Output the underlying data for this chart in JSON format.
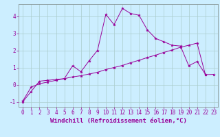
{
  "xlabel": "Windchill (Refroidissement éolien,°C)",
  "background_color": "#cceeff",
  "line_color": "#990099",
  "xlim": [
    -0.5,
    23.5
  ],
  "ylim": [
    -1.3,
    4.7
  ],
  "yticks": [
    -1,
    0,
    1,
    2,
    3,
    4
  ],
  "xticks": [
    0,
    1,
    2,
    3,
    4,
    5,
    6,
    7,
    8,
    9,
    10,
    11,
    12,
    13,
    14,
    15,
    16,
    17,
    18,
    19,
    20,
    21,
    22,
    23
  ],
  "line1_x": [
    0,
    1,
    2,
    3,
    4,
    5,
    6,
    7,
    8,
    9,
    10,
    11,
    12,
    13,
    14,
    15,
    16,
    17,
    18,
    19,
    20,
    21,
    22
  ],
  "line1_y": [
    -1.0,
    -0.4,
    0.2,
    0.25,
    0.3,
    0.35,
    1.1,
    0.75,
    1.4,
    2.0,
    4.1,
    3.5,
    4.45,
    4.15,
    4.05,
    3.2,
    2.7,
    2.5,
    2.3,
    2.25,
    1.1,
    1.35,
    0.6
  ],
  "line2_x": [
    0,
    1,
    2,
    3,
    4,
    5,
    6,
    7,
    8,
    9,
    10,
    11,
    12,
    13,
    14,
    15,
    16,
    17,
    18,
    19,
    20,
    21,
    22,
    23
  ],
  "line2_y": [
    -0.95,
    -0.15,
    0.05,
    0.15,
    0.25,
    0.35,
    0.45,
    0.52,
    0.62,
    0.72,
    0.88,
    1.0,
    1.12,
    1.28,
    1.42,
    1.58,
    1.72,
    1.88,
    2.02,
    2.18,
    2.3,
    2.42,
    0.58,
    0.6
  ],
  "grid_color": "#aacccc",
  "tick_fontsize": 5.5,
  "xlabel_fontsize": 6.5
}
